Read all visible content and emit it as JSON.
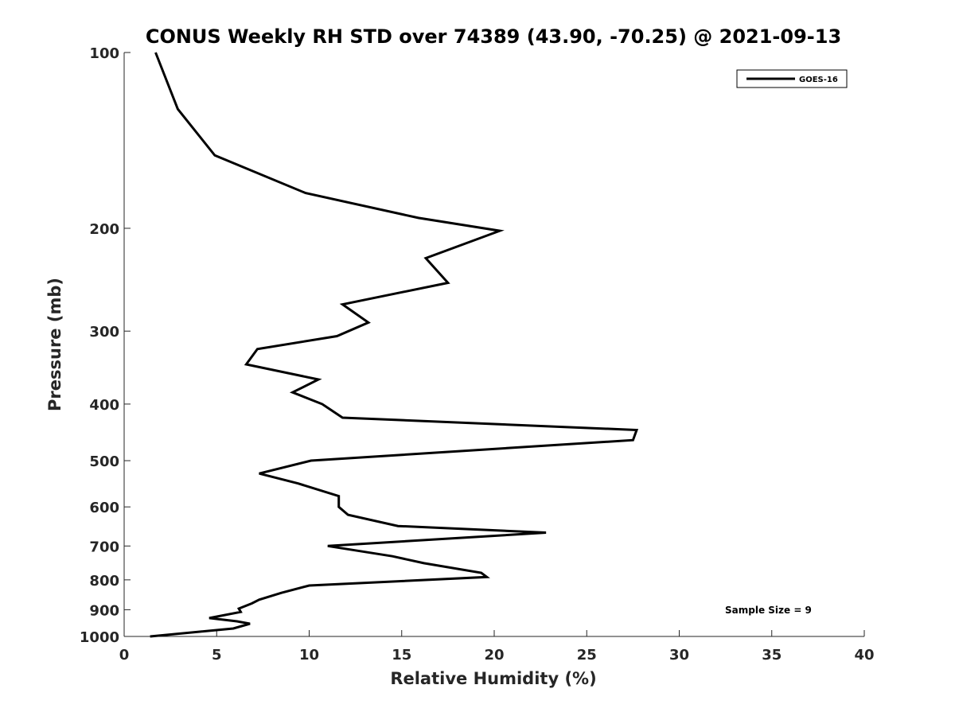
{
  "chart_data": {
    "type": "line",
    "title": "CONUS Weekly RH STD over 74389 (43.90, -70.25) @ 2021-09-13",
    "xlabel": "Relative Humidity (%)",
    "ylabel": "Pressure (mb)",
    "xlim": [
      0,
      40
    ],
    "ylim": [
      100,
      1000
    ],
    "y_scale": "log",
    "y_reversed": true,
    "grid": false,
    "legend_position": "top-right",
    "x_ticks": [
      0,
      5,
      10,
      15,
      20,
      25,
      30,
      35,
      40
    ],
    "y_ticks": [
      100,
      200,
      300,
      400,
      500,
      600,
      700,
      800,
      900,
      1000
    ],
    "series": [
      {
        "name": "GOES-16",
        "color": "#000000",
        "x": [
          1.7,
          2.9,
          4.9,
          9.8,
          15.9,
          20.3,
          16.3,
          17.5,
          11.8,
          13.2,
          11.5,
          7.2,
          6.6,
          10.5,
          9.1,
          10.7,
          11.8,
          27.7,
          27.5,
          10.1,
          7.3,
          9.4,
          11.6,
          11.6,
          12.1,
          14.8,
          22.8,
          11.0,
          14.5,
          16.2,
          19.3,
          19.6,
          10.0,
          8.5,
          7.3,
          6.9,
          6.2,
          6.3,
          4.6,
          6.1,
          6.8,
          5.9,
          1.4
        ],
        "y": [
          100,
          125,
          150,
          174,
          192,
          202,
          225,
          248,
          270,
          290,
          306,
          322,
          342,
          363,
          382,
          400,
          422,
          443,
          461,
          500,
          526,
          547,
          575,
          600,
          619,
          647,
          664,
          700,
          729,
          749,
          778,
          791,
          818,
          842,
          865,
          878,
          896,
          908,
          930,
          942,
          951,
          969,
          1000
        ]
      }
    ],
    "annotations": [
      "Sample Size = 9"
    ]
  }
}
